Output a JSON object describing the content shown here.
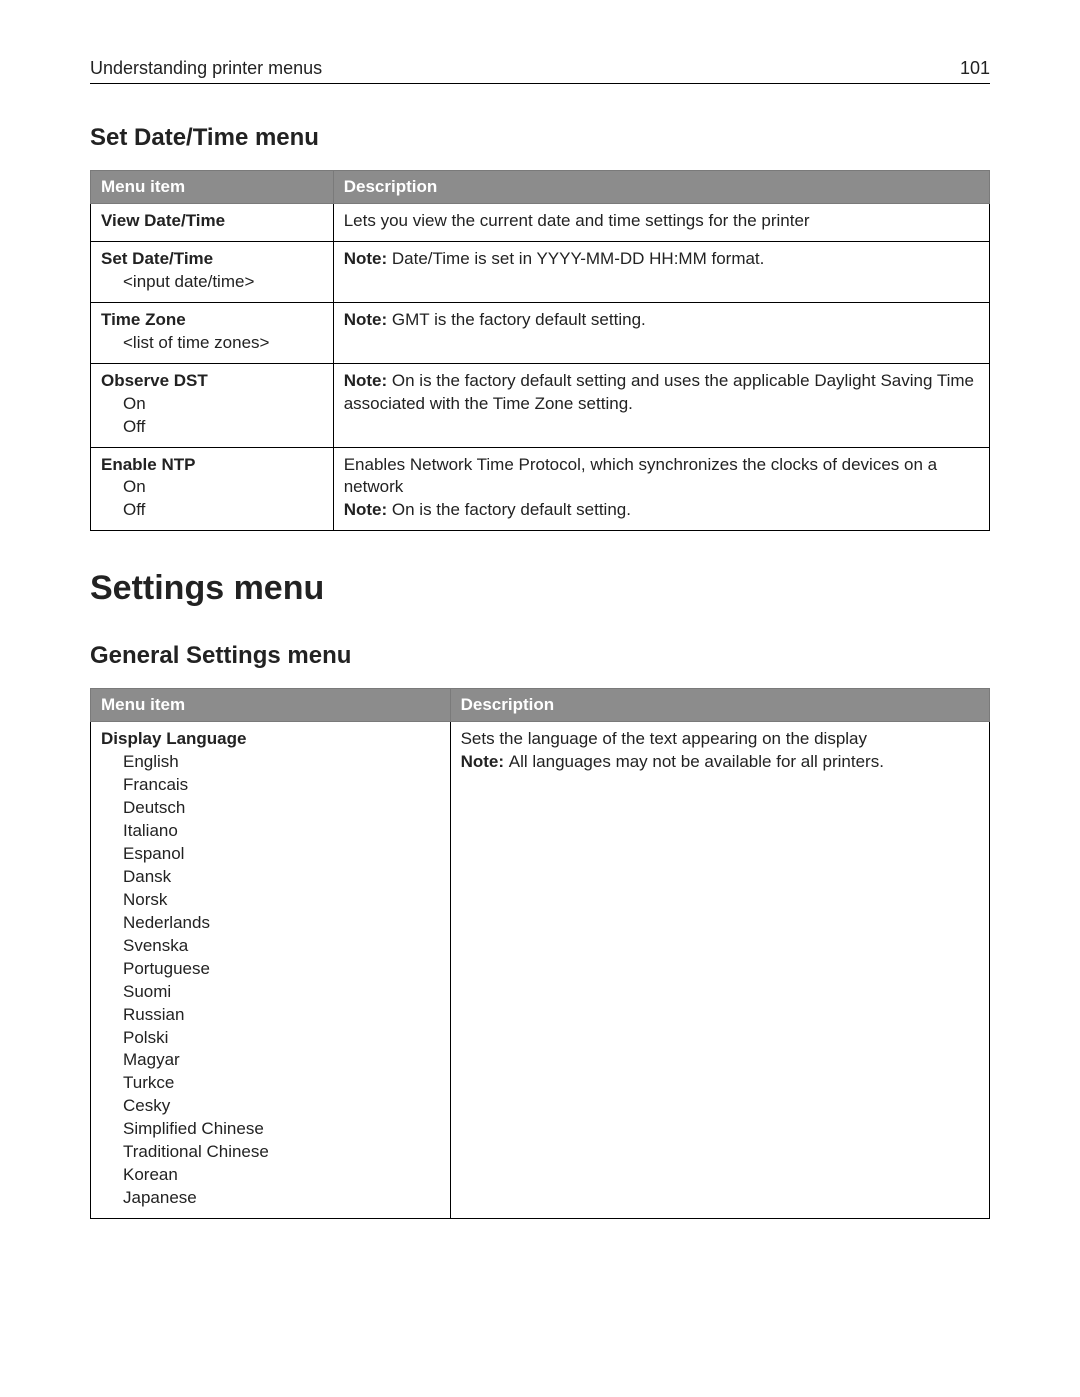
{
  "header": {
    "running_title": "Understanding printer menus",
    "page_number": "101"
  },
  "section1": {
    "heading": "Set Date/Time menu",
    "col_menu": "Menu item",
    "col_desc": "Description",
    "rows": [
      {
        "title": "View Date/Time",
        "options": [],
        "desc_pre": "Lets you view the current date and time settings for the printer",
        "note_label": "",
        "note_text": ""
      },
      {
        "title": "Set Date/Time",
        "options": [
          "<input date/time>"
        ],
        "desc_pre": "",
        "note_label": "Note: ",
        "note_text": "Date/Time is set in YYYY-MM-DD HH:MM format."
      },
      {
        "title": "Time Zone",
        "options": [
          "<list of time zones>"
        ],
        "desc_pre": "",
        "note_label": "Note: ",
        "note_text": "GMT is the factory default setting."
      },
      {
        "title": "Observe DST",
        "options": [
          "On",
          "Off"
        ],
        "desc_pre": "",
        "note_label": "Note: ",
        "note_text": "On is the factory default setting and uses the applicable Daylight Saving Time associated with the Time Zone setting."
      },
      {
        "title": "Enable NTP",
        "options": [
          "On",
          "Off"
        ],
        "desc_pre": "Enables Network Time Protocol, which synchronizes the clocks of devices on a network",
        "note_label": "Note: ",
        "note_text": "On is the factory default setting."
      }
    ]
  },
  "big_heading": "Settings menu",
  "section2": {
    "heading": "General Settings menu",
    "col_menu": "Menu item",
    "col_desc": "Description",
    "row": {
      "title": "Display Language",
      "options": [
        "English",
        "Francais",
        "Deutsch",
        "Italiano",
        "Espanol",
        "Dansk",
        "Norsk",
        "Nederlands",
        "Svenska",
        "Portuguese",
        "Suomi",
        "Russian",
        "Polski",
        "Magyar",
        "Turkce",
        "Cesky",
        "Simplified Chinese",
        "Traditional Chinese",
        "Korean",
        "Japanese"
      ],
      "desc_pre": "Sets the language of the text appearing on the display",
      "note_label": "Note: ",
      "note_text": "All languages may not be available for all printers."
    }
  }
}
